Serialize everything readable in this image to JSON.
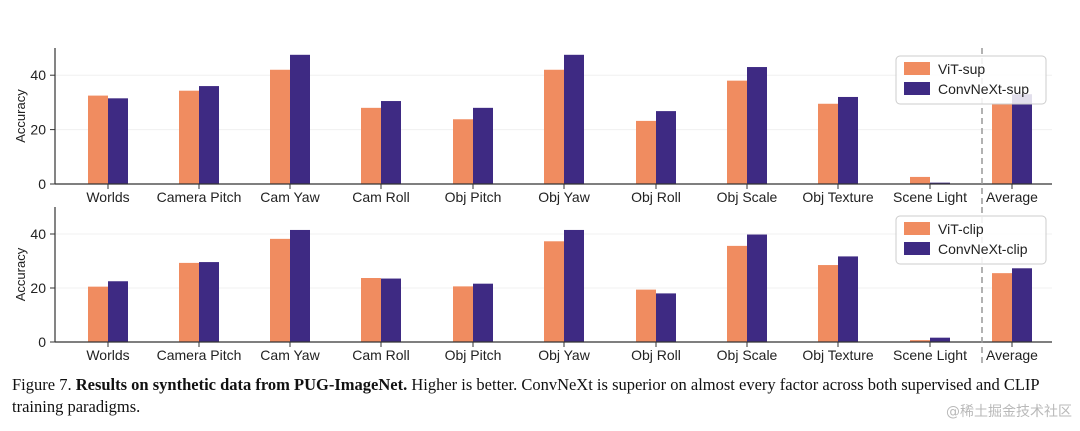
{
  "colors": {
    "orange": "#f08c60",
    "purple": "#3e2a83",
    "axis": "#333333",
    "dashed": "#999999"
  },
  "chart_data": [
    {
      "type": "bar",
      "ylabel": "Accuracy",
      "ylim": [
        0,
        50
      ],
      "yticks": [
        0,
        20,
        40
      ],
      "categories": [
        "Worlds",
        "Camera Pitch",
        "Cam Yaw",
        "Cam Roll",
        "Obj Pitch",
        "Obj Yaw",
        "Obj Roll",
        "Obj Scale",
        "Obj Texture",
        "Scene Light",
        "Average"
      ],
      "legend_position": "top-right",
      "separator_before": "Average",
      "series": [
        {
          "name": "ViT-sup",
          "color": "orange",
          "values": [
            32.5,
            34.3,
            42,
            28,
            23.8,
            42,
            23.2,
            38,
            29.5,
            2.6,
            29.5
          ]
        },
        {
          "name": "ConvNeXt-sup",
          "color": "purple",
          "values": [
            31.5,
            36,
            47.5,
            30.5,
            28,
            47.5,
            26.8,
            43,
            32,
            0.5,
            33
          ]
        }
      ]
    },
    {
      "type": "bar",
      "ylabel": "Accuracy",
      "ylim": [
        0,
        50
      ],
      "yticks": [
        0,
        20,
        40
      ],
      "categories": [
        "Worlds",
        "Camera Pitch",
        "Cam Yaw",
        "Cam Roll",
        "Obj Pitch",
        "Obj Yaw",
        "Obj Roll",
        "Obj Scale",
        "Obj Texture",
        "Scene Light",
        "Average"
      ],
      "legend_position": "top-right",
      "separator_before": "Average",
      "series": [
        {
          "name": "ViT-clip",
          "color": "orange",
          "values": [
            20.5,
            29.3,
            38.2,
            23.7,
            20.6,
            37.3,
            19.4,
            35.6,
            28.5,
            0.7,
            25.5
          ]
        },
        {
          "name": "ConvNeXt-clip",
          "color": "purple",
          "values": [
            22.5,
            29.6,
            41.5,
            23.5,
            21.6,
            41.5,
            18,
            39.8,
            31.7,
            1.6,
            27.3
          ]
        }
      ]
    }
  ],
  "caption": {
    "label": "Figure 7.",
    "title": "Results on synthetic data from PUG-ImageNet.",
    "body": "Higher is better. ConvNeXt is superior on almost every factor across both supervised and CLIP training paradigms."
  },
  "watermark": "@稀土掘金技术社区"
}
